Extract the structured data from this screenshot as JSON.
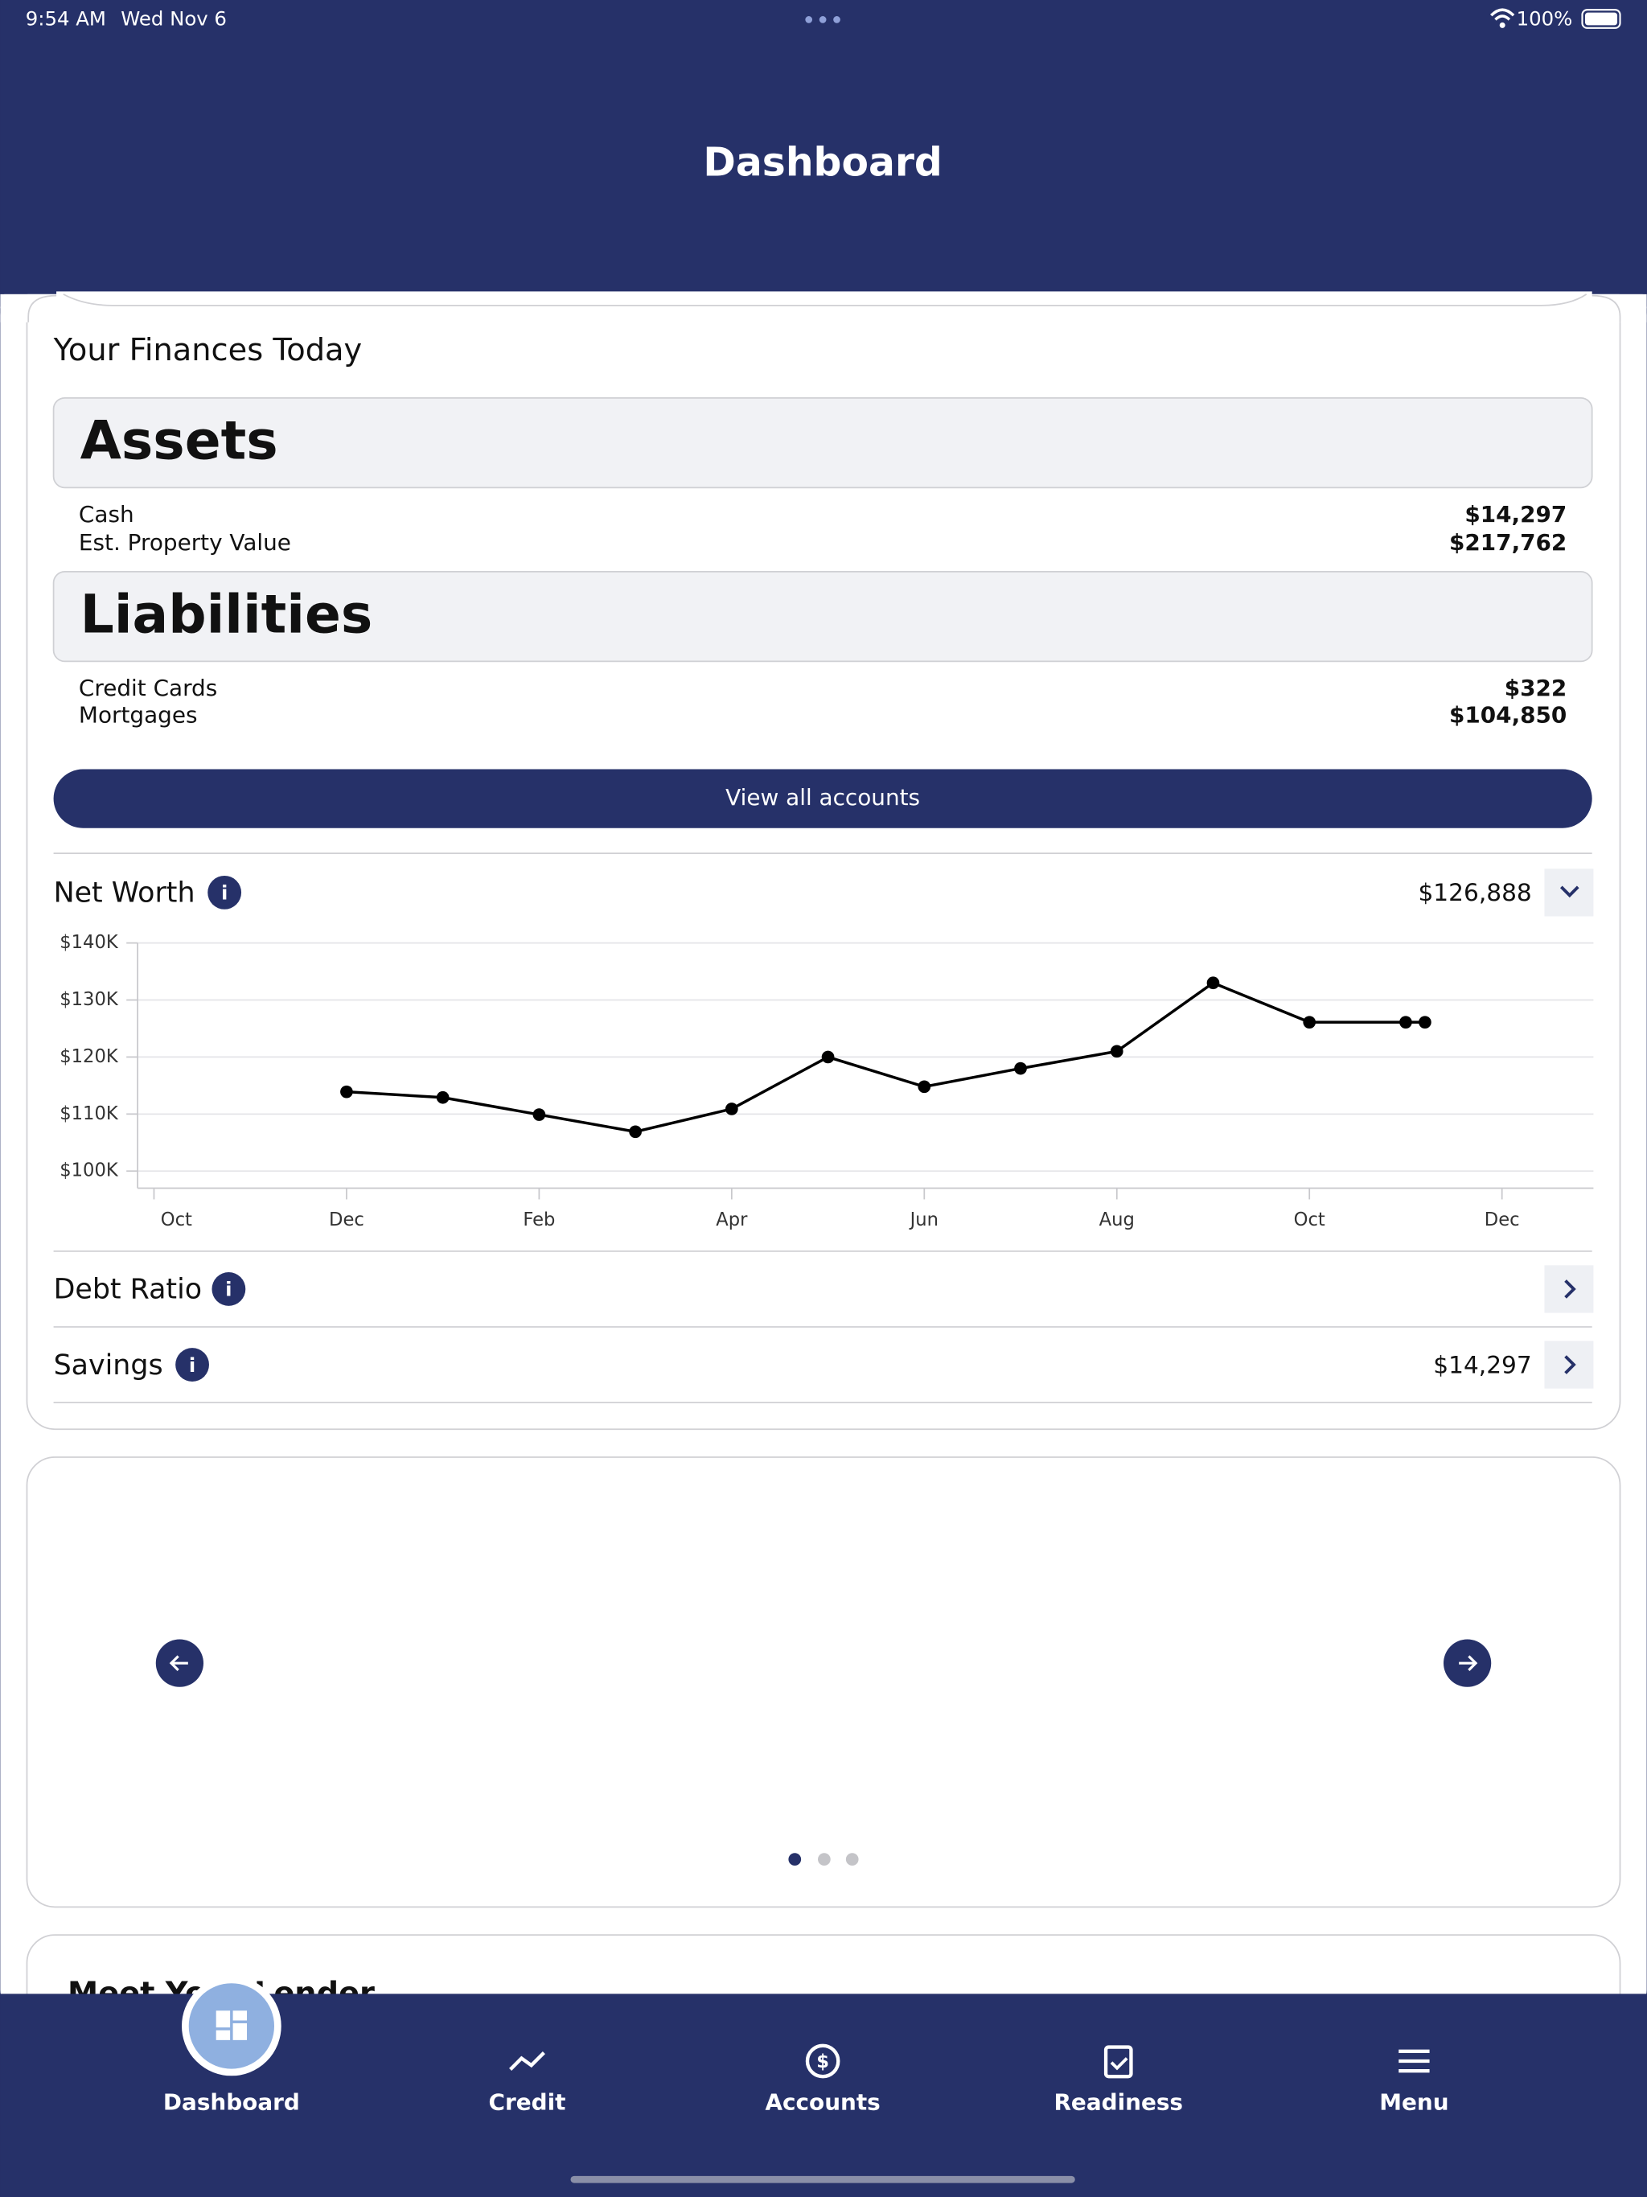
{
  "status_bar": {
    "time": "9:54 AM",
    "date": "Wed Nov 6",
    "battery": "100%"
  },
  "header": {
    "title": "Dashboard"
  },
  "finances": {
    "title": "Your Finances Today",
    "assets": {
      "title": "Assets",
      "rows": [
        {
          "label": "Cash",
          "value": "$14,297"
        },
        {
          "label": "Est. Property Value",
          "value": "$217,762"
        }
      ]
    },
    "liabilities": {
      "title": "Liabilities",
      "rows": [
        {
          "label": "Credit Cards",
          "value": "$322"
        },
        {
          "label": "Mortgages",
          "value": "$104,850"
        }
      ]
    },
    "button": "View all accounts"
  },
  "net_worth": {
    "title": "Net Worth",
    "value": "$126,888"
  },
  "chart_data": {
    "type": "line",
    "color": "#000000",
    "x": [
      2,
      3,
      4,
      5,
      6,
      7,
      8,
      9,
      10,
      11,
      12,
      13,
      13.2
    ],
    "values": [
      113900,
      112900,
      109900,
      106900,
      110900,
      120000,
      114800,
      118000,
      121000,
      133000,
      126100,
      126100,
      126100
    ],
    "xlim": [
      -0.17,
      14.95
    ],
    "xticks": [
      {
        "value": 0,
        "label": "Oct"
      },
      {
        "value": 2,
        "label": "Dec"
      },
      {
        "value": 4,
        "label": "Feb"
      },
      {
        "value": 6,
        "label": "Apr"
      },
      {
        "value": 8,
        "label": "Jun"
      },
      {
        "value": 10,
        "label": "Aug"
      },
      {
        "value": 12,
        "label": "Oct"
      },
      {
        "value": 14,
        "label": "Dec"
      }
    ],
    "ylim": [
      97000,
      140000
    ],
    "yticks": [
      {
        "value": 100000,
        "label": "$100K"
      },
      {
        "value": 110000,
        "label": "$110K"
      },
      {
        "value": 120000,
        "label": "$120K"
      },
      {
        "value": 130000,
        "label": "$130K"
      },
      {
        "value": 140000,
        "label": "$140K"
      }
    ],
    "grid": true
  },
  "debt_ratio": {
    "title": "Debt Ratio"
  },
  "savings": {
    "title": "Savings",
    "value": "$14,297"
  },
  "next_card": {
    "title": "Meet Your Lender"
  },
  "tab_bar": {
    "items": [
      "Dashboard",
      "Credit",
      "Accounts",
      "Readiness",
      "Menu"
    ]
  }
}
